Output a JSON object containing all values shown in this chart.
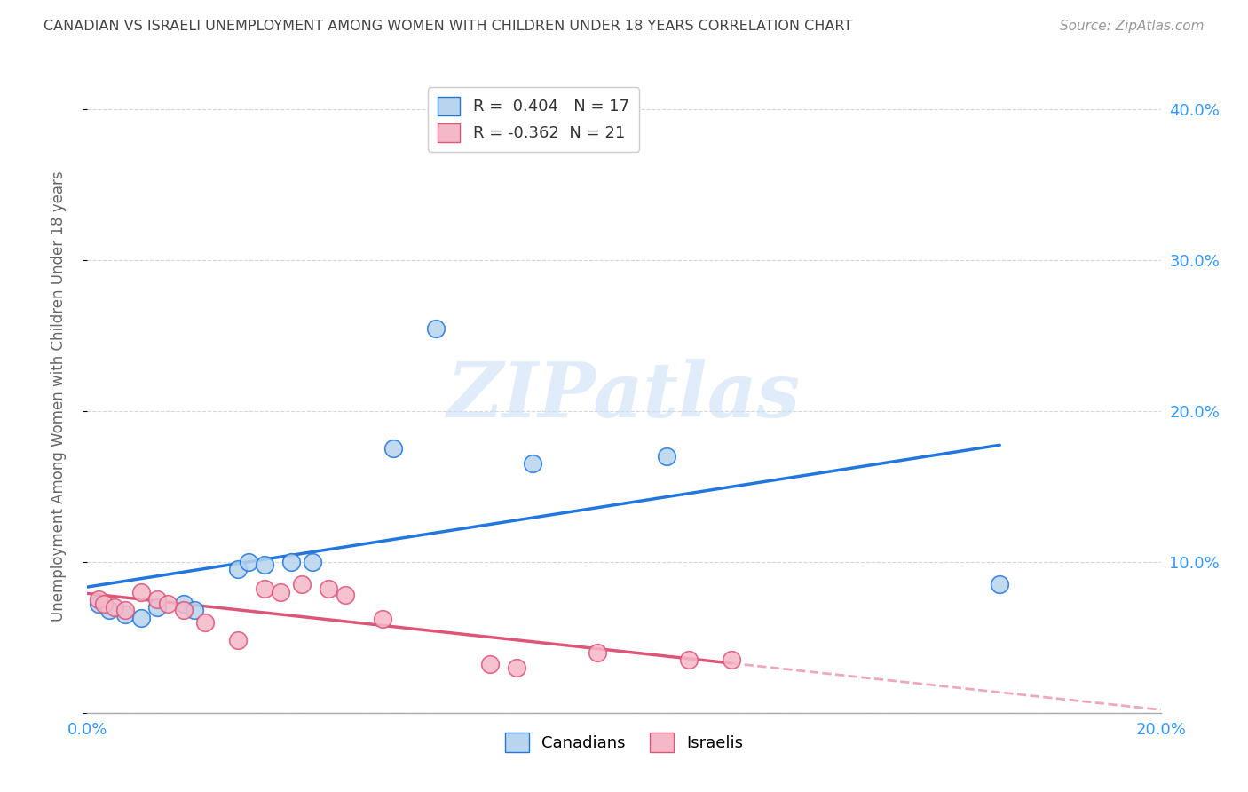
{
  "title": "CANADIAN VS ISRAELI UNEMPLOYMENT AMONG WOMEN WITH CHILDREN UNDER 18 YEARS CORRELATION CHART",
  "source": "Source: ZipAtlas.com",
  "ylabel": "Unemployment Among Women with Children Under 18 years",
  "xlim": [
    0.0,
    0.2
  ],
  "ylim": [
    0.0,
    0.42
  ],
  "yticks": [
    0.0,
    0.1,
    0.2,
    0.3,
    0.4
  ],
  "ytick_labels": [
    "",
    "10.0%",
    "20.0%",
    "30.0%",
    "40.0%"
  ],
  "xticks": [
    0.0,
    0.04,
    0.08,
    0.12,
    0.16,
    0.2
  ],
  "xtick_labels": [
    "0.0%",
    "",
    "",
    "",
    "",
    "20.0%"
  ],
  "canadian_R": 0.404,
  "canadian_N": 17,
  "israeli_R": -0.362,
  "israeli_N": 21,
  "canadian_color": "#b8d4ee",
  "israeli_color": "#f5b8c8",
  "canadian_line_color": "#2277dd",
  "israeli_line_color": "#dd5577",
  "watermark_text": "ZIPatlas",
  "canadian_scatter": [
    [
      0.002,
      0.072
    ],
    [
      0.004,
      0.068
    ],
    [
      0.007,
      0.065
    ],
    [
      0.01,
      0.063
    ],
    [
      0.013,
      0.07
    ],
    [
      0.018,
      0.072
    ],
    [
      0.02,
      0.068
    ],
    [
      0.028,
      0.095
    ],
    [
      0.03,
      0.1
    ],
    [
      0.033,
      0.098
    ],
    [
      0.038,
      0.1
    ],
    [
      0.042,
      0.1
    ],
    [
      0.057,
      0.175
    ],
    [
      0.065,
      0.255
    ],
    [
      0.083,
      0.165
    ],
    [
      0.108,
      0.17
    ],
    [
      0.17,
      0.085
    ]
  ],
  "israeli_scatter": [
    [
      0.002,
      0.075
    ],
    [
      0.003,
      0.072
    ],
    [
      0.005,
      0.07
    ],
    [
      0.007,
      0.068
    ],
    [
      0.01,
      0.08
    ],
    [
      0.013,
      0.075
    ],
    [
      0.015,
      0.072
    ],
    [
      0.018,
      0.068
    ],
    [
      0.022,
      0.06
    ],
    [
      0.028,
      0.048
    ],
    [
      0.033,
      0.082
    ],
    [
      0.036,
      0.08
    ],
    [
      0.04,
      0.085
    ],
    [
      0.045,
      0.082
    ],
    [
      0.048,
      0.078
    ],
    [
      0.055,
      0.062
    ],
    [
      0.075,
      0.032
    ],
    [
      0.08,
      0.03
    ],
    [
      0.095,
      0.04
    ],
    [
      0.112,
      0.035
    ],
    [
      0.12,
      0.035
    ]
  ],
  "background_color": "#ffffff",
  "grid_color": "#cccccc",
  "title_color": "#444444",
  "scatter_size": 200
}
